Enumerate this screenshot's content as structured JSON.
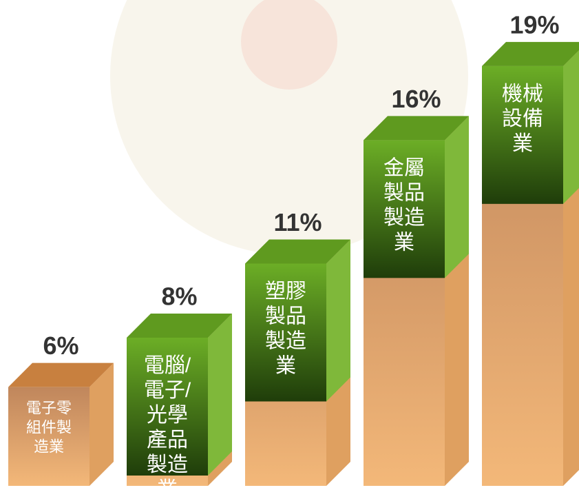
{
  "chart_data": {
    "type": "bar3d",
    "categories": [
      "電子零\n組件製\n造業",
      "電腦/\n電子/\n光學\n產品\n製造\n業",
      "塑膠\n製品\n製造\n業",
      "金屬\n製品\n製造\n業",
      "機械\n設備\n業"
    ],
    "values": [
      6,
      8,
      11,
      16,
      19
    ],
    "value_labels": [
      "6%",
      "8%",
      "11%",
      "16%",
      "19%"
    ],
    "colors": [
      "#c8803f",
      "#5f9a1f",
      "#5f9a1f",
      "#5f9a1f",
      "#5f9a1f"
    ],
    "ylim": [
      2,
      20
    ]
  }
}
